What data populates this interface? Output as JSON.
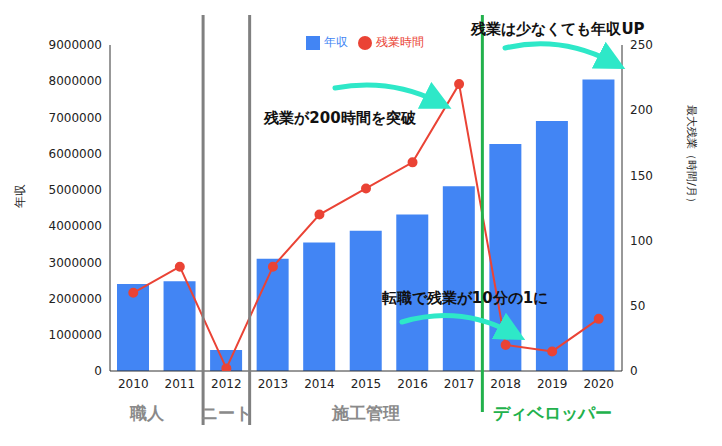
{
  "chart_data": {
    "type": "bar",
    "categories": [
      "2010",
      "2011",
      "2012",
      "2013",
      "2014",
      "2015",
      "2016",
      "2017",
      "2018",
      "2019",
      "2020"
    ],
    "series": [
      {
        "name": "年収",
        "type": "bar",
        "color": "#4285f4",
        "values": [
          2400000,
          2480000,
          580000,
          3100000,
          3550000,
          3870000,
          4320000,
          5100000,
          6270000,
          6900000,
          8050000
        ]
      },
      {
        "name": "残業時間",
        "type": "line",
        "axis": "y2",
        "color": "#ea4335",
        "marker": "circle",
        "values": [
          60,
          80,
          2,
          80,
          120,
          140,
          160,
          220,
          20,
          15,
          40
        ]
      }
    ],
    "y_label": "年収",
    "y2_label": "最大残業（時間/月）",
    "ylim": [
      0,
      9000000
    ],
    "yticks": [
      0,
      1000000,
      2000000,
      3000000,
      4000000,
      5000000,
      6000000,
      7000000,
      8000000,
      9000000
    ],
    "y2lim": [
      0,
      250
    ],
    "y2ticks": [
      0,
      50,
      100,
      150,
      200,
      250
    ],
    "annotations": [
      "残業が200時間を突破",
      "転職で残業が10分の1に",
      "残業は少なくても年収UP"
    ],
    "phases": [
      "職人",
      "ニート",
      "施工管理",
      "ディベロッパー"
    ],
    "grid": false,
    "legend": "top"
  }
}
